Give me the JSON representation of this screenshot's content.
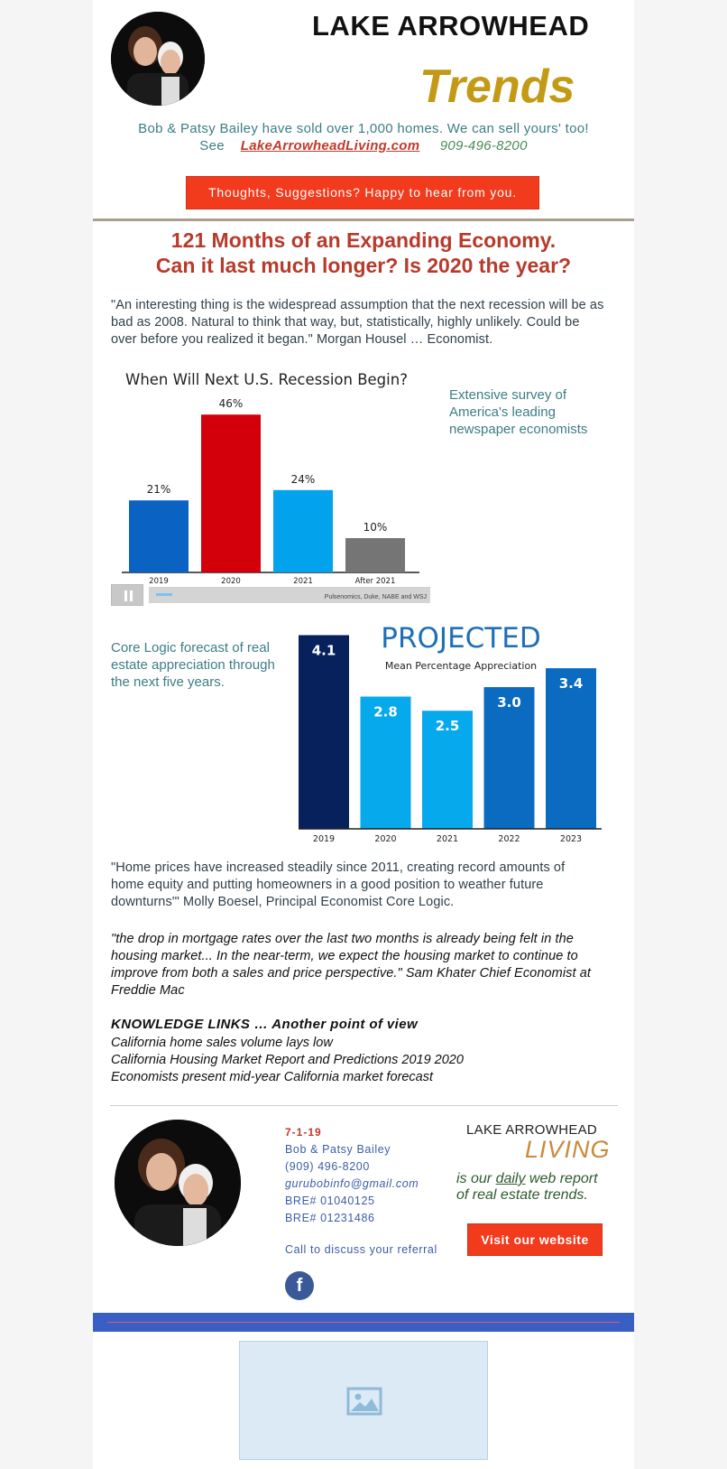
{
  "header": {
    "title": "LAKE ARROWHEAD",
    "trends": "Trends",
    "tagline": "Bob & Patsy Bailey have sold over 1,000 homes. We can sell yours' too!",
    "see_label": "See",
    "site_link": "LakeArrowheadLiving.com",
    "phone": "909-496-8200",
    "feedback_button": "Thoughts, Suggestions?  Happy to hear from you."
  },
  "article": {
    "headline_1": "121 Months of an Expanding Economy.",
    "headline_2": "Can it last much longer? Is 2020 the year?",
    "quote_1": "\"An interesting thing is the widespread assumption that the next recession will be as bad as 2008. Natural to think that way, but, statistically, highly unlikely. Could be over before you realized it began.\"   Morgan Housel … Economist.",
    "survey_note": "Extensive survey of America's leading newspaper economists",
    "corelogic_note": "Core Logic forecast of real estate appreciation through the next five years.",
    "quote_2": "\"Home prices have increased steadily since 2011, creating record amounts of home equity and putting homeowners in a good position to weather future downturns'\"  Molly Boesel, Principal Economist Core Logic.",
    "quote_3": "\"the drop in mortgage rates over the last two months is already being felt in the housing market... In the near-term, we expect the housing market to continue to improve from both a sales and price perspective.\" Sam Khater Chief Economist at Freddie Mac"
  },
  "video": {
    "source": "Pulsenomics, Duke, NABE and WSJ"
  },
  "chart_data": [
    {
      "type": "bar",
      "title": "When Will Next U.S. Recession Begin?",
      "categories": [
        "2019",
        "2020",
        "2021",
        "After 2021"
      ],
      "values": [
        21,
        46,
        24,
        10
      ],
      "value_labels": [
        "21%",
        "46%",
        "24%",
        "10%"
      ],
      "colors": [
        "#0a63c2",
        "#d3000c",
        "#02a3ec",
        "#757575"
      ],
      "ylim": [
        0,
        50
      ]
    },
    {
      "type": "bar",
      "title": "PROJECTED",
      "subtitle": "Mean Percentage Appreciation",
      "categories": [
        "2019",
        "2020",
        "2021",
        "2022",
        "2023"
      ],
      "values": [
        4.1,
        2.8,
        2.5,
        3.0,
        3.4
      ],
      "value_labels": [
        "4.1",
        "2.8",
        "2.5",
        "3.0",
        "3.4"
      ],
      "colors": [
        "#06215c",
        "#06a9ec",
        "#06a9ec",
        "#0a6bc0",
        "#0a6bc0"
      ],
      "ylim": [
        0,
        4.3
      ]
    }
  ],
  "knowledge": {
    "heading": "KNOWLEDGE LINKS … Another point of view",
    "links": [
      "California home sales volume lays low",
      "California Housing Market Report and Predictions 2019 2020",
      "Economists present mid-year California market forecast"
    ]
  },
  "footer": {
    "date": "7-1-19",
    "name": "Bob & Patsy Bailey",
    "phone": "(909) 496-8200",
    "email": "gurubobinfo@gmail.com",
    "bre_1": "BRE# 01040125",
    "bre_2": "BRE# 01231486",
    "call": "Call to discuss your referral",
    "logo_top": "LAKE ARROWHEAD",
    "logo_bottom": "LIVING",
    "report_pre": "is our ",
    "report_daily": "daily",
    "report_post": " web report",
    "report_line2": "of real estate trends.",
    "visit_button": "Visit our website",
    "facebook_glyph": "f"
  }
}
